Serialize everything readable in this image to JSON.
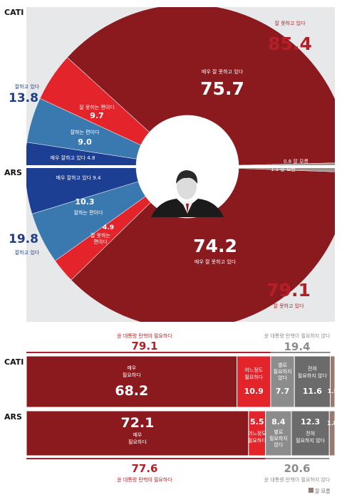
{
  "colors": {
    "panel_bg": "#e6e8ea",
    "very_bad": "#8b1a1f",
    "somewhat_bad": "#e3242b",
    "somewhat_good": "#3a79b0",
    "very_good": "#1c3f94",
    "dont_know": "#a0908a",
    "bar_grey": "#8c8c8c",
    "bar_grey_dark": "#6b6b6b",
    "bar_dk": "#9a7a6e",
    "white": "#ffffff"
  },
  "chart_data": [
    {
      "type": "pie",
      "group_labels": {
        "cati": "CATI",
        "ars": "ARS"
      },
      "cati": {
        "slices": [
          {
            "key": "very_bad",
            "label": "매우 잘 못하고 있다",
            "value": 75.7
          },
          {
            "key": "somewhat_bad",
            "label": "잘 못하는 편이다",
            "value": 9.7
          },
          {
            "key": "somewhat_good",
            "label": "잘하는 편이다",
            "value": 9.0
          },
          {
            "key": "very_good",
            "label": "매우 잘하고 있다",
            "value": 4.8
          },
          {
            "key": "dont_know",
            "label": "잘 모름",
            "value": 0.8
          }
        ],
        "total_bad": {
          "label": "잘 못하고 있다",
          "value": 85.4
        },
        "total_good": {
          "label": "잘하고 있다",
          "value": 13.8
        }
      },
      "ars": {
        "slices": [
          {
            "key": "very_good",
            "label": "매우 잘하고 있다",
            "value": 9.4
          },
          {
            "key": "somewhat_good",
            "label": "잘하는 편이다",
            "value": 10.3
          },
          {
            "key": "somewhat_bad",
            "label": "잘 못하는 편이다",
            "value": 4.9
          },
          {
            "key": "very_bad",
            "label": "매우 잘 못하고 있다",
            "value": 74.2
          },
          {
            "key": "dont_know",
            "label": "잘 모름",
            "value": 1.1
          }
        ],
        "total_bad": {
          "label": "잘 못하고 있다",
          "value": 79.1
        },
        "total_good": {
          "label": "잘하고 있다",
          "value": 19.8
        }
      }
    },
    {
      "type": "bar",
      "categories": [
        "CATI",
        "ARS"
      ],
      "series": [
        {
          "key": "very_needed",
          "name": "매우 필요하다",
          "values": [
            68.2,
            72.1
          ]
        },
        {
          "key": "somewhat_needed",
          "name": "어느정도 필요하다",
          "values": [
            10.9,
            5.5
          ]
        },
        {
          "key": "not_really",
          "name": "별로 필요하지 않다",
          "values": [
            7.7,
            8.4
          ]
        },
        {
          "key": "not_at_all",
          "name": "전혀 필요하지 않다",
          "values": [
            11.6,
            12.3
          ]
        },
        {
          "key": "dont_know",
          "name": "잘 모름",
          "values": [
            1.5,
            1.8
          ]
        }
      ],
      "totals": {
        "needed": {
          "label": "윤 대통령 탄핵이 필요하다",
          "values": [
            79.1,
            77.6
          ]
        },
        "not_needed": {
          "label": "윤 대통령 탄핵이 필요하지 않다",
          "values": [
            19.4,
            20.6
          ]
        }
      },
      "legend": {
        "dont_know": "잘 모름"
      }
    }
  ]
}
